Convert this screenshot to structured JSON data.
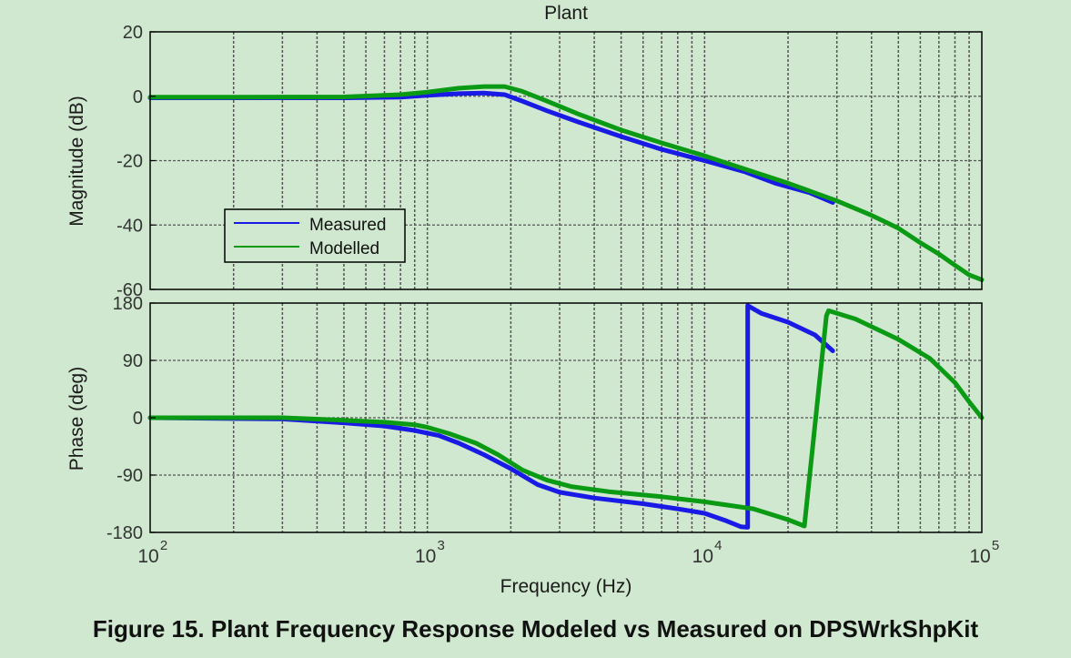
{
  "caption": "Figure 15. Plant Frequency Response Modeled vs Measured on DPSWrkShpKit",
  "colors": {
    "background": "#cfe8cf",
    "measured": "#1a1ae6",
    "modelled": "#0a9a14"
  },
  "chart_data": {
    "type": "line",
    "title": "Plant",
    "xlabel": "Frequency (Hz)",
    "xscale": "log",
    "xlim": [
      100,
      100000
    ],
    "x_ticks": [
      {
        "base": "10",
        "exp": "2",
        "value": 100
      },
      {
        "base": "10",
        "exp": "3",
        "value": 1000
      },
      {
        "base": "10",
        "exp": "4",
        "value": 10000
      },
      {
        "base": "10",
        "exp": "5",
        "value": 100000
      }
    ],
    "grid": true,
    "legend": {
      "placement": "middle-left of magnitude plot",
      "entries": [
        "Measured",
        "Modelled"
      ]
    },
    "panels": [
      {
        "id": "magnitude",
        "ylabel": "Magnitude (dB)",
        "ylim": [
          -60,
          20
        ],
        "y_ticks": [
          20,
          0,
          -20,
          -40,
          -60
        ],
        "series": [
          {
            "name": "Measured",
            "color": "#1a1ae6",
            "x": [
              100,
              200,
              500,
              800,
              1000,
              1300,
              1600,
              1900,
              2200,
              2700,
              3500,
              5000,
              7000,
              10000,
              14000,
              18000,
              24000,
              29000
            ],
            "y": [
              -0.5,
              -0.5,
              -0.5,
              -0.3,
              0.3,
              0.8,
              1.0,
              0.5,
              -1.5,
              -4.5,
              -8,
              -12.5,
              -16.5,
              -20,
              -23.5,
              -27,
              -30,
              -33
            ]
          },
          {
            "name": "Modelled",
            "color": "#0a9a14",
            "x": [
              100,
              200,
              500,
              800,
              1000,
              1300,
              1600,
              1900,
              2200,
              2700,
              3500,
              5000,
              7000,
              10000,
              15000,
              20000,
              30000,
              40000,
              50000,
              60000,
              70000,
              80000,
              90000,
              100000
            ],
            "y": [
              -0.3,
              -0.3,
              -0.2,
              0.5,
              1.3,
              2.5,
              3.0,
              3.0,
              1.5,
              -1.5,
              -5.5,
              -10.5,
              -14.5,
              -18.5,
              -23.5,
              -27,
              -32.5,
              -37,
              -41,
              -45.5,
              -49,
              -52.5,
              -55.5,
              -57
            ]
          }
        ]
      },
      {
        "id": "phase",
        "ylabel": "Phase (deg)",
        "ylim": [
          -180,
          180
        ],
        "y_ticks": [
          180,
          90,
          0,
          -90,
          -180
        ],
        "series": [
          {
            "name": "Measured",
            "color": "#1a1ae6",
            "x": [
              100,
              300,
              500,
              700,
              900,
              1100,
              1300,
              1600,
              2000,
              2500,
              3000,
              4000,
              6000,
              8000,
              10000,
              12000,
              13500,
              14300,
              14301,
              16000,
              20000,
              25000,
              29000
            ],
            "y": [
              0,
              -2,
              -8,
              -13,
              -20,
              -28,
              -40,
              -58,
              -80,
              -105,
              -117,
              -126,
              -135,
              -143,
              -150,
              -162,
              -171,
              -172,
              176,
              164,
              150,
              130,
              105
            ]
          },
          {
            "name": "Modelled",
            "color": "#0a9a14",
            "x": [
              100,
              300,
              500,
              700,
              900,
              1000,
              1200,
              1500,
              1800,
              2200,
              2700,
              3300,
              4500,
              7000,
              10000,
              15000,
              20000,
              22900,
              27500,
              28000,
              35000,
              50000,
              65000,
              80000,
              90000,
              100000
            ],
            "y": [
              0,
              0,
              -4,
              -7,
              -11,
              -15,
              -25,
              -40,
              -58,
              -82,
              -98,
              -108,
              -116,
              -124,
              -132,
              -143,
              -160,
              -170,
              160,
              168,
              155,
              123,
              93,
              55,
              25,
              0
            ]
          }
        ]
      }
    ]
  }
}
